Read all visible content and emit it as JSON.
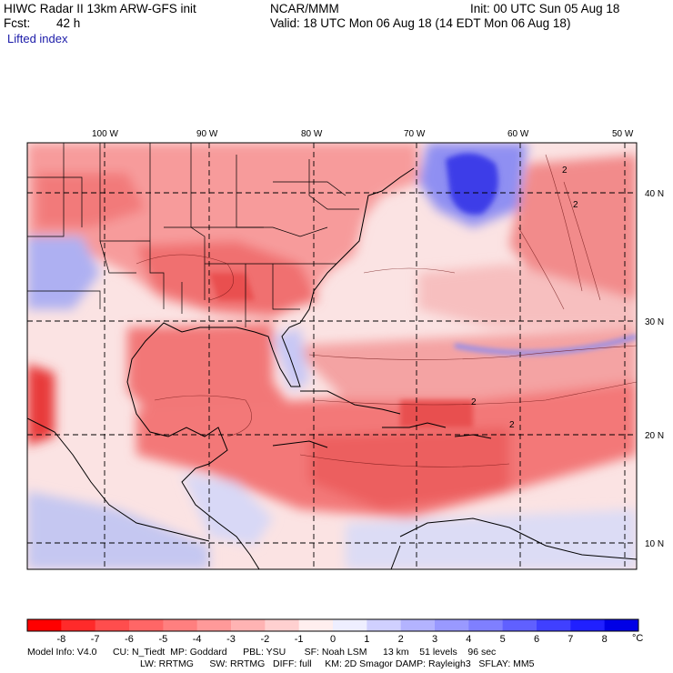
{
  "header": {
    "title": "HIWC Radar II 13km ARW-GFS init",
    "org": "NCAR/MMM",
    "init": "Init: 00 UTC Sun 05 Aug 18",
    "fcst_label": "Fcst:",
    "fcst_value": "42 h",
    "valid": "Valid: 18 UTC Mon 06 Aug 18 (14 EDT Mon 06 Aug 18)",
    "field": "Lifted index"
  },
  "map": {
    "lon_labels": [
      "100 W",
      "90 W",
      "80 W",
      "70 W",
      "60 W",
      "50 W"
    ],
    "lat_labels": [
      "40 N",
      "30 N",
      "20 N",
      "10 N"
    ],
    "contour_labels": [
      "2",
      "2",
      "2",
      "2"
    ]
  },
  "colorbar": {
    "ticks": [
      "-8",
      "-7",
      "-6",
      "-5",
      "-4",
      "-3",
      "-2",
      "-1",
      "0",
      "1",
      "2",
      "3",
      "4",
      "5",
      "6",
      "7",
      "8"
    ],
    "unit": "°C",
    "colors": [
      "#ff0000",
      "#ff2a2a",
      "#ff4d4d",
      "#ff6666",
      "#ff7f7f",
      "#ff9999",
      "#ffb3b3",
      "#ffd0d0",
      "#ffeeee",
      "#eeeeff",
      "#d0d0ff",
      "#b3b3ff",
      "#9999ff",
      "#7f7fff",
      "#6060ff",
      "#4040ff",
      "#2020ff",
      "#0000e6"
    ]
  },
  "footer": {
    "line1": "Model Info: V4.0      CU: N_Tiedt  MP: Goddard      PBL: YSU       SF: Noah LSM      13 km    51 levels    96 sec",
    "line2": "LW: RRTMG      SW: RRTMG   DIFF: full     KM: 2D Smagor DAMP: Rayleigh3   SFLAY: MM5"
  }
}
